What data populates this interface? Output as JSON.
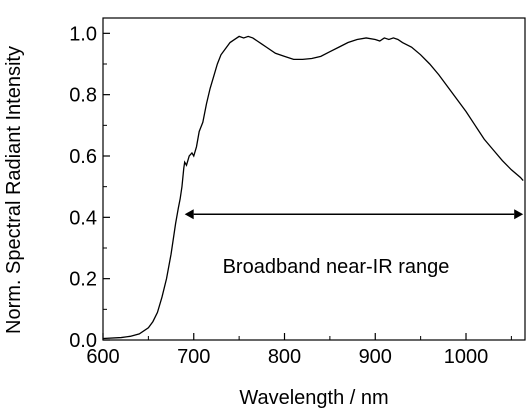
{
  "chart_data": {
    "type": "line",
    "title": "",
    "xlabel": "Wavelength / nm",
    "ylabel": "Norm. Spectral Radiant Intensity",
    "xlim": [
      600,
      1065
    ],
    "ylim": [
      0.0,
      1.05
    ],
    "x_ticks": [
      600,
      700,
      800,
      900,
      1000
    ],
    "x_tick_labels": [
      "600",
      "700",
      "800",
      "900",
      "1000"
    ],
    "y_ticks": [
      0.0,
      0.2,
      0.4,
      0.6,
      0.8,
      1.0
    ],
    "y_tick_labels": [
      "0.0",
      "0.2",
      "0.4",
      "0.6",
      "0.8",
      "1.0"
    ],
    "grid": false,
    "line_color": "#000000",
    "series": [
      {
        "x": [
          600,
          620,
          630,
          640,
          650,
          655,
          660,
          665,
          670,
          675,
          678,
          680,
          683,
          685,
          687,
          689,
          690,
          692,
          695,
          698,
          700,
          703,
          706,
          710,
          714,
          718,
          722,
          726,
          730,
          735,
          740,
          745,
          750,
          755,
          760,
          765,
          770,
          775,
          780,
          790,
          800,
          810,
          820,
          830,
          840,
          850,
          860,
          870,
          880,
          890,
          900,
          905,
          910,
          915,
          920,
          925,
          930,
          940,
          950,
          960,
          970,
          980,
          990,
          1000,
          1010,
          1020,
          1030,
          1040,
          1050,
          1060,
          1063
        ],
        "y": [
          0.005,
          0.008,
          0.012,
          0.02,
          0.04,
          0.06,
          0.09,
          0.14,
          0.2,
          0.28,
          0.34,
          0.38,
          0.43,
          0.46,
          0.5,
          0.56,
          0.58,
          0.57,
          0.6,
          0.61,
          0.6,
          0.63,
          0.68,
          0.71,
          0.77,
          0.82,
          0.86,
          0.9,
          0.93,
          0.95,
          0.97,
          0.98,
          0.99,
          0.985,
          0.99,
          0.985,
          0.975,
          0.965,
          0.955,
          0.935,
          0.925,
          0.915,
          0.915,
          0.918,
          0.925,
          0.94,
          0.955,
          0.97,
          0.98,
          0.985,
          0.98,
          0.975,
          0.985,
          0.98,
          0.985,
          0.98,
          0.97,
          0.955,
          0.93,
          0.9,
          0.865,
          0.825,
          0.785,
          0.745,
          0.7,
          0.655,
          0.62,
          0.585,
          0.555,
          0.53,
          0.52
        ]
      }
    ],
    "annotation": {
      "text": "Broadband near-IR range",
      "y": 0.41,
      "x_start": 690,
      "x_end": 1063
    }
  }
}
